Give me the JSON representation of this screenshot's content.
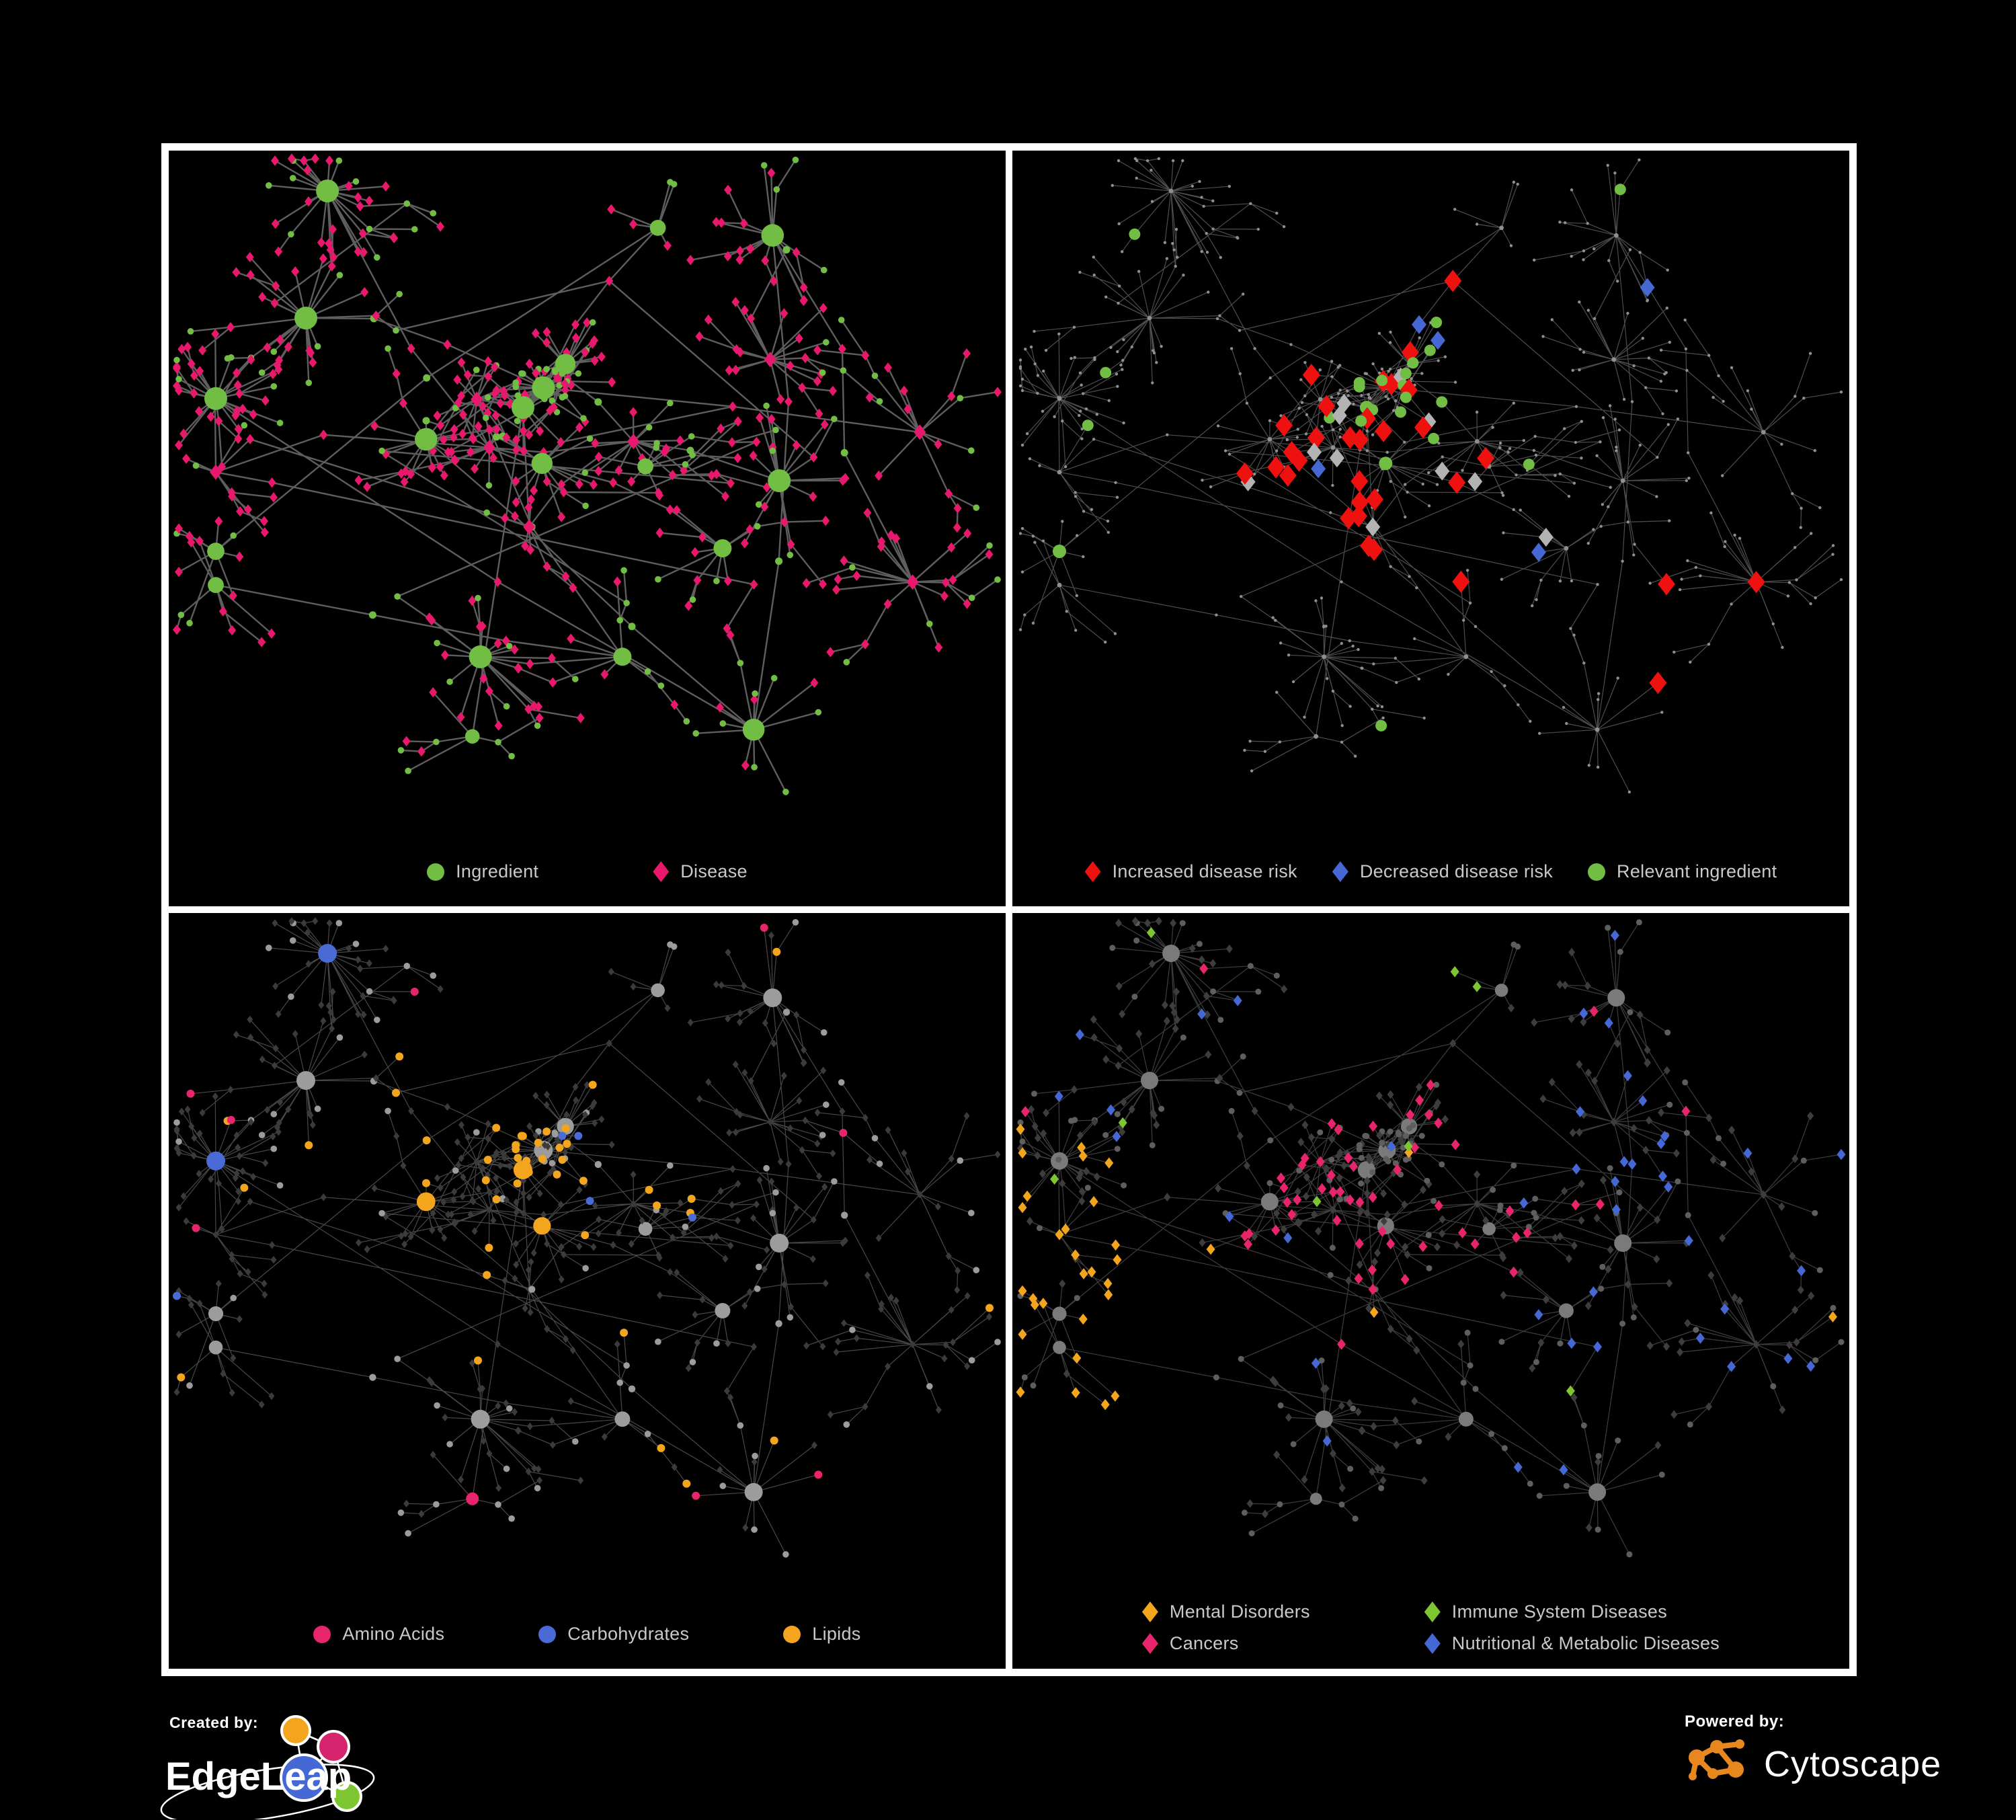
{
  "canvas": {
    "background": "#000000"
  },
  "frame": {
    "border_color": "#ffffff"
  },
  "network": {
    "seed": 42,
    "core_hubs": 10,
    "outer_hubs": 17,
    "description": "Ingredient-disease association network rendered in four styling variants"
  },
  "panels": [
    {
      "name": "ingredient-disease-network",
      "style": "type",
      "colors": {
        "ingredient": "#72BE44",
        "disease": "#E8196D",
        "edge": "#6E6E6E"
      },
      "legend_gap": 170,
      "legend": [
        {
          "shape": "circle",
          "color": "#72BE44",
          "label": "Ingredient"
        },
        {
          "shape": "diamond",
          "color": "#E8196D",
          "label": "Disease"
        }
      ]
    },
    {
      "name": "disease-risk-network",
      "style": "risk",
      "colors": {
        "base": "#8F8F8F",
        "edge": "#787878",
        "increased": "#EF1010",
        "decreased": "#4568D4",
        "neutral": "#B3B3B3",
        "relevant": "#72BE44"
      },
      "legend_gap": 52,
      "legend": [
        {
          "shape": "diamond",
          "color": "#EF1010",
          "label": "Increased disease risk"
        },
        {
          "shape": "diamond",
          "color": "#4568D4",
          "label": "Decreased disease risk"
        },
        {
          "shape": "circle",
          "color": "#72BE44",
          "label": "Relevant ingredient"
        }
      ]
    },
    {
      "name": "ingredient-class-network",
      "style": "ingredient-class",
      "colors": {
        "ingredient": "#9C9C9C",
        "disease": "#3B3B3B",
        "edge": "#8F8F8F",
        "amino": "#E8246D",
        "carbohydrate": "#4A6BD6",
        "lipid": "#F2A51D"
      },
      "legend_gap": 140,
      "legend": [
        {
          "shape": "circle",
          "color": "#E8246D",
          "label": "Amino Acids"
        },
        {
          "shape": "circle",
          "color": "#4A6BD6",
          "label": "Carbohydrates"
        },
        {
          "shape": "circle",
          "color": "#F2A51D",
          "label": "Lipids"
        }
      ]
    },
    {
      "name": "disease-class-network",
      "style": "disease-class",
      "colors": {
        "ingredient": "#5E5E5E",
        "ingredient_hub": "#7A7A7A",
        "disease": "#3D3D3D",
        "edge": "#8A8A8A",
        "mental": "#F2A51D",
        "cancer": "#E8246D",
        "immune": "#7DC631",
        "nutritional": "#4568D4"
      },
      "legend_layout": "grid-2col",
      "legend": [
        {
          "shape": "diamond",
          "color": "#F2A51D",
          "label": "Mental Disorders"
        },
        {
          "shape": "diamond",
          "color": "#7DC631",
          "label": "Immune System Diseases"
        },
        {
          "shape": "diamond",
          "color": "#E8246D",
          "label": "Cancers"
        },
        {
          "shape": "diamond",
          "color": "#4568D4",
          "label": "Nutritional & Metabolic Diseases"
        }
      ]
    }
  ],
  "footer": {
    "created_by_label": "Created by:",
    "created_by_brand": "EdgeLeap",
    "powered_by_label": "Powered by:",
    "powered_by_brand": "Cytoscape",
    "edgeleap_colors": {
      "orange": "#F2A51D",
      "magenta": "#D6246E",
      "blue": "#4568D4",
      "green": "#7DC631"
    },
    "cytoscape_orange": "#E8871E",
    "text_color": "#FFFFFF"
  }
}
